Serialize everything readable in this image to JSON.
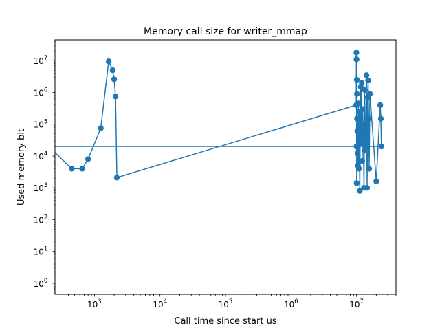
{
  "chart_data": {
    "type": "line",
    "title": "Memory call size for writer_mmap",
    "xlabel": "Call time since start us",
    "ylabel": "Used memory bit",
    "xscale": "log",
    "yscale": "log",
    "xlim": [
      250,
      40000000
    ],
    "ylim": [
      0.45,
      45000000
    ],
    "grid": false,
    "legend": "none",
    "marker": "circle",
    "x_ticks": [
      {
        "value": 1000,
        "base": "10",
        "exp": "3"
      },
      {
        "value": 10000,
        "base": "10",
        "exp": "4"
      },
      {
        "value": 100000,
        "base": "10",
        "exp": "5"
      },
      {
        "value": 1000000,
        "base": "10",
        "exp": "6"
      },
      {
        "value": 10000000,
        "base": "10",
        "exp": "7"
      }
    ],
    "y_ticks": [
      {
        "value": 1,
        "base": "10",
        "exp": "0"
      },
      {
        "value": 10,
        "base": "10",
        "exp": "1"
      },
      {
        "value": 100,
        "base": "10",
        "exp": "2"
      },
      {
        "value": 1000,
        "base": "10",
        "exp": "3"
      },
      {
        "value": 10000,
        "base": "10",
        "exp": "4"
      },
      {
        "value": 100000,
        "base": "10",
        "exp": "5"
      },
      {
        "value": 1000000,
        "base": "10",
        "exp": "6"
      },
      {
        "value": 10000000,
        "base": "10",
        "exp": "7"
      }
    ],
    "series": [
      {
        "color": "#1f77b4",
        "x": [
          10000000,
          200,
          450,
          650,
          800,
          1250,
          1650,
          1900,
          2000,
          2100,
          2200,
          9900000,
          9950000,
          10000000,
          10050000,
          10100000,
          10150000,
          10200000,
          10300000,
          10400000,
          10500000,
          10700000,
          10900000,
          11000000,
          11100000,
          11200000,
          11400000,
          11600000,
          11800000,
          12000000,
          12200000,
          12400000,
          12700000,
          13000000,
          13300000,
          13600000,
          13900000,
          14200000,
          14500000,
          14800000,
          15000000,
          15300000,
          15600000,
          16000000,
          20000000,
          23000000,
          23500000,
          24000000,
          10000000
        ],
        "y": [
          20000,
          20000,
          4000,
          4000,
          8000,
          75000,
          9500000,
          5000000,
          2600000,
          750000,
          2100,
          400000,
          18000000,
          11000000,
          1400,
          2500000,
          900000,
          150000,
          60000,
          12000,
          5000,
          450000,
          4000,
          250000,
          40000,
          800,
          120000,
          1500000,
          25000,
          2000000,
          7000,
          300000,
          50000,
          1000,
          1200000,
          15000,
          100000,
          3500000,
          1000,
          700000,
          2400000,
          150000,
          4000,
          900000,
          1600,
          400000,
          150000,
          20000,
          20000
        ]
      }
    ]
  }
}
